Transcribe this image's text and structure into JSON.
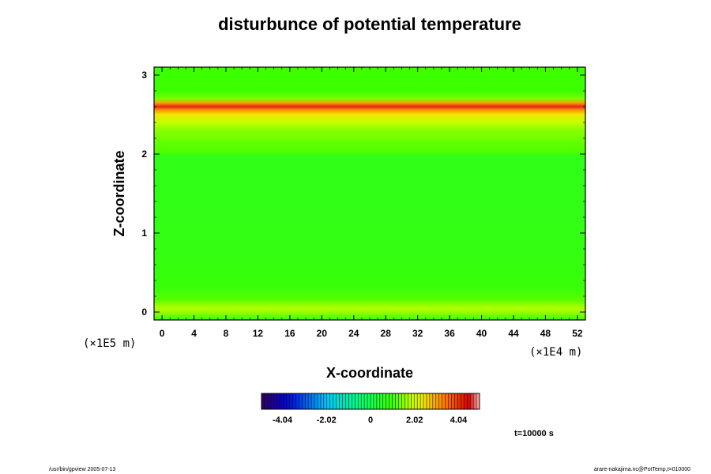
{
  "chart_data": {
    "type": "heatmap",
    "title": "disturbunce of potential temperature",
    "xlabel": "X-coordinate",
    "ylabel": "Z-coordinate",
    "x_unit": "(×1E4 m)",
    "z_unit": "(×1E5 m)",
    "xlim": [
      -1,
      53
    ],
    "ylim": [
      -0.1,
      3.1
    ],
    "x_ticks": [
      "0",
      "4",
      "8",
      "12",
      "16",
      "20",
      "24",
      "28",
      "32",
      "36",
      "40",
      "44",
      "48",
      "52"
    ],
    "y_ticks": [
      "0",
      "1",
      "2",
      "3"
    ],
    "z_profile": [
      {
        "z": 3.05,
        "value": 1.0
      },
      {
        "z": 2.8,
        "value": 1.0
      },
      {
        "z": 2.7,
        "value": 1.4
      },
      {
        "z": 2.65,
        "value": 3.0
      },
      {
        "z": 2.6,
        "value": 4.6
      },
      {
        "z": 2.56,
        "value": 3.2
      },
      {
        "z": 2.5,
        "value": 2.4
      },
      {
        "z": 2.4,
        "value": 1.9
      },
      {
        "z": 2.3,
        "value": 1.5
      },
      {
        "z": 2.1,
        "value": 1.2
      },
      {
        "z": 2.01,
        "value": 1.1
      },
      {
        "z": 1.99,
        "value": 0.7
      },
      {
        "z": 1.0,
        "value": 0.75
      },
      {
        "z": 0.3,
        "value": 0.9
      },
      {
        "z": 0.15,
        "value": 1.2
      },
      {
        "z": 0.05,
        "value": 1.8
      },
      {
        "z": 0.0,
        "value": 1.6
      },
      {
        "z": -0.1,
        "value": 0.9
      }
    ],
    "colorbar": {
      "range": [
        -5,
        5
      ],
      "ticks": [
        "-4.04",
        "-2.02",
        "0",
        "2.02",
        "4.04"
      ]
    },
    "time_label": "t=10000 s"
  },
  "footer": {
    "left": "/usr/bin/gpview 2005-07-13",
    "right": "arare-nakajima.nc@PotTemp,t=010000"
  }
}
